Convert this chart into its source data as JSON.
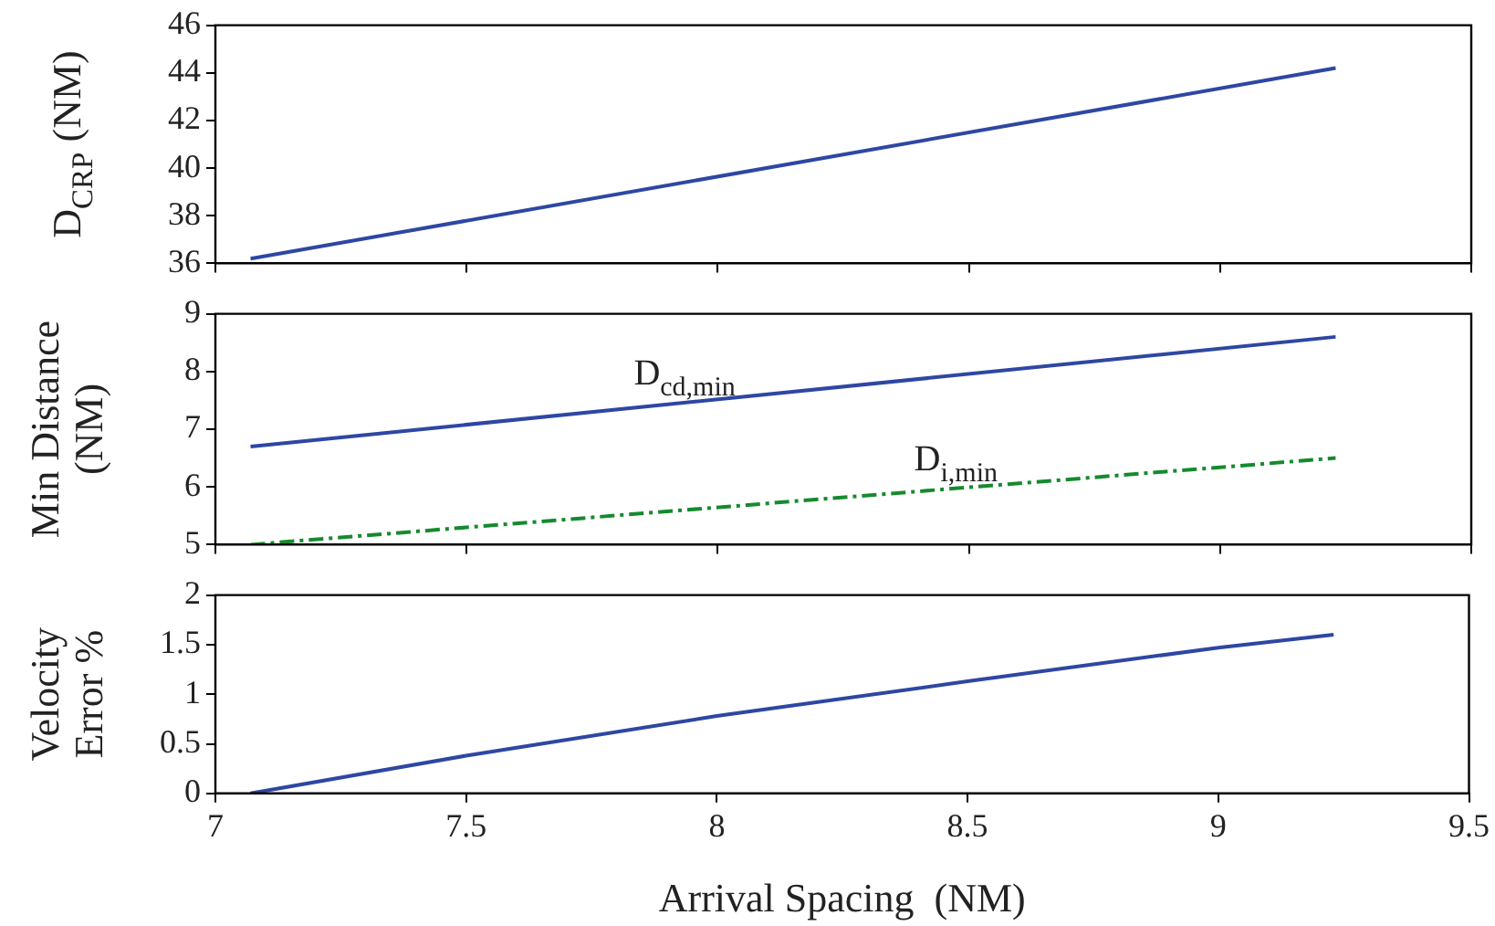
{
  "chart_data": [
    {
      "type": "line",
      "ylabel": "D$_{CRP}$ (NM)",
      "xlim": [
        7,
        9.5
      ],
      "xticks": [
        7,
        7.5,
        8,
        8.5,
        9,
        9.5
      ],
      "ylim": [
        36,
        46
      ],
      "yticks": [
        36,
        38,
        40,
        42,
        44,
        46
      ],
      "tick_labels": "y",
      "marker": "none",
      "series": [
        {
          "color": "#2e47a3",
          "line_style": "solid",
          "x": [
            7.07,
            9.23
          ],
          "values": [
            36.2,
            44.2
          ]
        }
      ]
    },
    {
      "type": "line",
      "ylabel": "Min Distance (NM)",
      "xlim": [
        7,
        9.5
      ],
      "xticks": [
        7,
        7.5,
        8,
        8.5,
        9,
        9.5
      ],
      "ylim": [
        5,
        9
      ],
      "yticks": [
        5,
        6,
        7,
        8,
        9
      ],
      "tick_labels": "y",
      "marker": "none",
      "series": [
        {
          "name": "D$_{cd,min}$",
          "color": "#2e47a3",
          "line_style": "solid",
          "x": [
            7.07,
            9.23
          ],
          "values": [
            6.7,
            8.6
          ]
        },
        {
          "name": "D$_{i,min}$",
          "color": "#168a2e",
          "line_style": "dashed",
          "x": [
            7.07,
            9.23
          ],
          "values": [
            5.0,
            6.5
          ]
        }
      ]
    },
    {
      "type": "line",
      "ylabel": "Velocity Error %",
      "xlabel": "Arrival Spacing  (NM)",
      "xlim": [
        7,
        9.5
      ],
      "xticks": [
        7,
        7.5,
        8,
        8.5,
        9,
        9.5
      ],
      "ylim": [
        0,
        2
      ],
      "yticks": [
        0,
        0.5,
        1,
        1.5,
        2
      ],
      "marker": "none",
      "series": [
        {
          "color": "#2e47a3",
          "line_style": "solid",
          "x": [
            7.07,
            7.5,
            8,
            8.5,
            9,
            9.23
          ],
          "values": [
            0,
            0.38,
            0.78,
            1.13,
            1.47,
            1.6
          ]
        }
      ]
    }
  ]
}
